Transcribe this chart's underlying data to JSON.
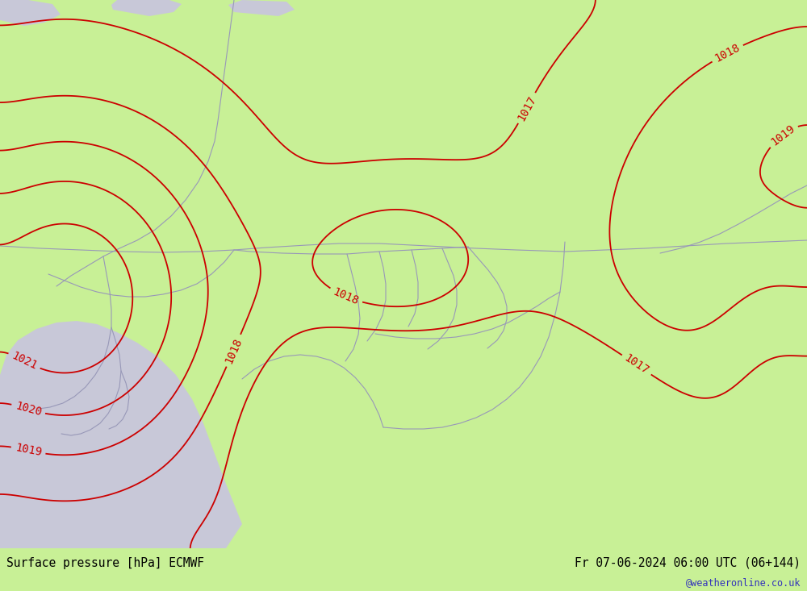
{
  "title_left": "Surface pressure [hPa] ECMWF",
  "title_right": "Fr 07-06-2024 06:00 UTC (06+144)",
  "credit": "@weatheronline.co.uk",
  "bg_color": "#c8f096",
  "sea_color": "#c8c8d8",
  "border_color": "#9898b8",
  "isobar_color": "#cc0000",
  "isobar_linewidth": 1.3,
  "isobar_fontsize": 10,
  "label_fontsize": 10.5,
  "credit_fontsize": 8.5,
  "pressure_levels": [
    1017,
    1018,
    1019,
    1020,
    1021
  ],
  "figsize": [
    10.0,
    7.33
  ],
  "dpi": 100
}
